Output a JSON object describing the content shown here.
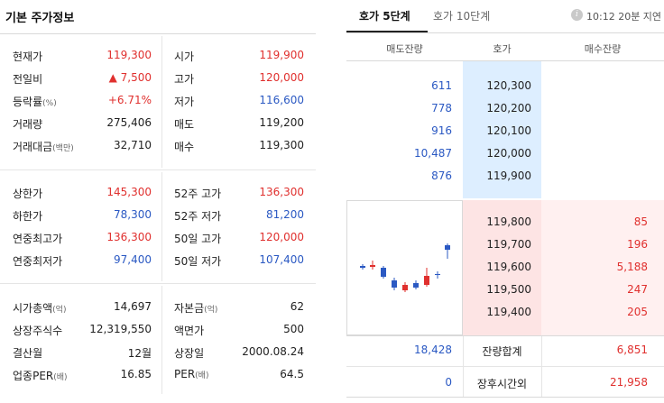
{
  "left": {
    "title": "기본 주가정보",
    "section1": [
      {
        "l1": "현재가",
        "u1": "",
        "v1": "119,300",
        "c1": "red",
        "l2": "시가",
        "u2": "",
        "v2": "119,900",
        "c2": "red"
      },
      {
        "l1": "전일비",
        "u1": "",
        "v1": "▲ 7,500",
        "c1": "red",
        "l2": "고가",
        "u2": "",
        "v2": "120,000",
        "c2": "red"
      },
      {
        "l1": "등락률",
        "u1": "(%)",
        "v1": "+6.71%",
        "c1": "red",
        "l2": "저가",
        "u2": "",
        "v2": "116,600",
        "c2": "blue"
      },
      {
        "l1": "거래량",
        "u1": "",
        "v1": "275,406",
        "c1": "blk",
        "l2": "매도",
        "u2": "",
        "v2": "119,200",
        "c2": "blk"
      },
      {
        "l1": "거래대금",
        "u1": "(백만)",
        "v1": "32,710",
        "c1": "blk",
        "l2": "매수",
        "u2": "",
        "v2": "119,300",
        "c2": "blk"
      }
    ],
    "section2": [
      {
        "l1": "상한가",
        "u1": "",
        "v1": "145,300",
        "c1": "red",
        "l2": "52주 고가",
        "u2": "",
        "v2": "136,300",
        "c2": "red"
      },
      {
        "l1": "하한가",
        "u1": "",
        "v1": "78,300",
        "c1": "blue",
        "l2": "52주 저가",
        "u2": "",
        "v2": "81,200",
        "c2": "blue"
      },
      {
        "l1": "연중최고가",
        "u1": "",
        "v1": "136,300",
        "c1": "red",
        "l2": "50일 고가",
        "u2": "",
        "v2": "120,000",
        "c2": "red"
      },
      {
        "l1": "연중최저가",
        "u1": "",
        "v1": "97,400",
        "c1": "blue",
        "l2": "50일 저가",
        "u2": "",
        "v2": "107,400",
        "c2": "blue"
      }
    ],
    "section3": [
      {
        "l1": "시가총액",
        "u1": "(억)",
        "v1": "14,697",
        "c1": "blk",
        "l2": "자본금",
        "u2": "(억)",
        "v2": "62",
        "c2": "blk"
      },
      {
        "l1": "상장주식수",
        "u1": "",
        "v1": "12,319,550",
        "c1": "blk",
        "l2": "액면가",
        "u2": "",
        "v2": "500",
        "c2": "blk"
      },
      {
        "l1": "결산월",
        "u1": "",
        "v1": "12월",
        "c1": "blk",
        "l2": "상장일",
        "u2": "",
        "v2": "2000.08.24",
        "c2": "blk"
      },
      {
        "l1": "업종PER",
        "u1": "(배)",
        "v1": "16.85",
        "c1": "blk",
        "l2": "PER",
        "u2": "(배)",
        "v2": "64.5",
        "c2": "blk"
      }
    ]
  },
  "right": {
    "tabs": [
      "호가 5단계",
      "호가 10단계"
    ],
    "info_icon_glyph": "i",
    "delay_text": "10:12 20분 지연",
    "headers": [
      "매도잔량",
      "호가",
      "매수잔량"
    ],
    "asks": [
      {
        "qty": "611",
        "price": "120,300"
      },
      {
        "qty": "778",
        "price": "120,200"
      },
      {
        "qty": "916",
        "price": "120,100"
      },
      {
        "qty": "10,487",
        "price": "120,000"
      },
      {
        "qty": "876",
        "price": "119,900"
      }
    ],
    "bids": [
      {
        "price": "119,800",
        "qty": "85"
      },
      {
        "price": "119,700",
        "qty": "196"
      },
      {
        "price": "119,600",
        "qty": "5,188"
      },
      {
        "price": "119,500",
        "qty": "247"
      },
      {
        "price": "119,400",
        "qty": "205"
      }
    ],
    "summary": [
      {
        "left": "18,428",
        "label": "잔량합계",
        "right": "6,851"
      },
      {
        "left": "0",
        "label": "장후시간외",
        "right": "21,958"
      }
    ]
  }
}
